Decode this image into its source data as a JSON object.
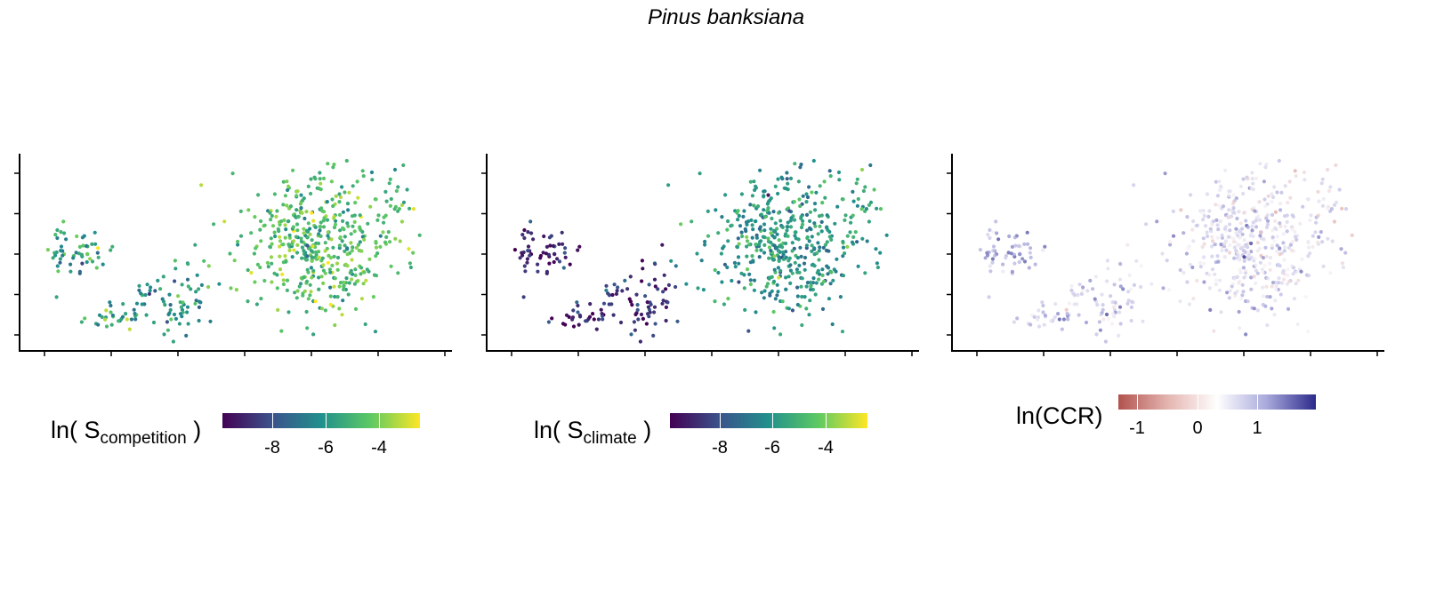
{
  "title": "Pinus banksiana",
  "chart_data": [
    {
      "type": "scatter",
      "panel": "competition",
      "legend_label_main": "ln( S",
      "legend_label_sub": "competition",
      "legend_label_end": " )",
      "colorbar_ticks": [
        "-8",
        "-6",
        "-4"
      ],
      "color_range": [
        -9.8,
        -2.6
      ],
      "colorscale": "viridis",
      "xlim": [
        0,
        100
      ],
      "ylim": [
        0,
        50
      ],
      "x_tick_count": 7,
      "y_tick_count": 5,
      "clusters": [
        {
          "x": 7,
          "y": 22,
          "sx": 1.5,
          "sy": 6,
          "n": 20,
          "v": -5.6
        },
        {
          "x": 14,
          "y": 24,
          "sx": 3,
          "sy": 3,
          "n": 35,
          "v": -5.8
        },
        {
          "x": 20,
          "y": 6,
          "sx": 3,
          "sy": 2,
          "n": 28,
          "v": -5.5
        },
        {
          "x": 30,
          "y": 13,
          "sx": 5,
          "sy": 4,
          "n": 28,
          "v": -6.2
        },
        {
          "x": 38,
          "y": 12,
          "sx": 3,
          "sy": 7,
          "n": 45,
          "v": -6.0
        },
        {
          "x": 70,
          "y": 27,
          "sx": 9,
          "sy": 10,
          "n": 450,
          "v": -4.8
        },
        {
          "x": 88,
          "y": 40,
          "sx": 5,
          "sy": 5,
          "n": 30,
          "v": -4.9
        }
      ]
    },
    {
      "type": "scatter",
      "panel": "climate",
      "legend_label_main": "ln( S",
      "legend_label_sub": "climate",
      "legend_label_end": " )",
      "colorbar_ticks": [
        "-8",
        "-6",
        "-4"
      ],
      "color_range": [
        -9.8,
        -2.6
      ],
      "colorscale": "viridis",
      "xlim": [
        0,
        100
      ],
      "ylim": [
        0,
        50
      ],
      "x_tick_count": 7,
      "y_tick_count": 5,
      "clusters": [
        {
          "x": 7,
          "y": 22,
          "sx": 1.5,
          "sy": 6,
          "n": 20,
          "v": -8.8
        },
        {
          "x": 14,
          "y": 24,
          "sx": 3,
          "sy": 3,
          "n": 35,
          "v": -8.7
        },
        {
          "x": 20,
          "y": 6,
          "sx": 3,
          "sy": 2,
          "n": 28,
          "v": -8.7
        },
        {
          "x": 30,
          "y": 13,
          "sx": 5,
          "sy": 4,
          "n": 28,
          "v": -8.5
        },
        {
          "x": 38,
          "y": 12,
          "sx": 3,
          "sy": 7,
          "n": 45,
          "v": -8.6
        },
        {
          "x": 70,
          "y": 27,
          "sx": 9,
          "sy": 10,
          "n": 450,
          "v": -6.0
        },
        {
          "x": 88,
          "y": 40,
          "sx": 5,
          "sy": 5,
          "n": 30,
          "v": -5.2
        }
      ]
    },
    {
      "type": "scatter",
      "panel": "ccr",
      "legend_label_main": "ln(CCR)",
      "legend_label_sub": "",
      "legend_label_end": "",
      "colorbar_ticks": [
        "-1",
        "0",
        "1"
      ],
      "color_range": [
        -1.6,
        2.0
      ],
      "colorscale": "diverging-red-white-blue",
      "xlim": [
        0,
        100
      ],
      "ylim": [
        0,
        50
      ],
      "x_tick_count": 7,
      "y_tick_count": 5,
      "clusters": [
        {
          "x": 7,
          "y": 22,
          "sx": 1.5,
          "sy": 6,
          "n": 20,
          "v": 0.9
        },
        {
          "x": 14,
          "y": 24,
          "sx": 3,
          "sy": 3,
          "n": 35,
          "v": 1.1
        },
        {
          "x": 20,
          "y": 6,
          "sx": 3,
          "sy": 2,
          "n": 28,
          "v": 0.8
        },
        {
          "x": 30,
          "y": 13,
          "sx": 5,
          "sy": 4,
          "n": 28,
          "v": 0.7
        },
        {
          "x": 38,
          "y": 12,
          "sx": 3,
          "sy": 7,
          "n": 45,
          "v": 0.8
        },
        {
          "x": 70,
          "y": 27,
          "sx": 9,
          "sy": 10,
          "n": 450,
          "v": 0.5
        },
        {
          "x": 88,
          "y": 40,
          "sx": 5,
          "sy": 5,
          "n": 30,
          "v": 0.2
        }
      ]
    }
  ]
}
